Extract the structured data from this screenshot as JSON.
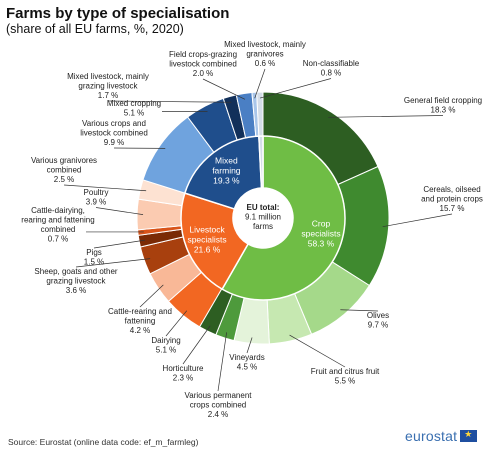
{
  "title": "Farms by type of specialisation",
  "subtitle": "(share of all EU farms, %, 2020)",
  "source": "Source: Eurostat (online data code: ef_m_farmleg)",
  "logo": "eurostat",
  "chart_data": {
    "type": "pie",
    "center": {
      "line1": "EU total:",
      "line2": "9.1 million",
      "line3": "farms"
    },
    "inner": [
      {
        "name": "Crop specialists",
        "value": 58.3,
        "label": [
          "Crop",
          "specialists",
          "58.3 %"
        ],
        "color": "#6fbd45"
      },
      {
        "name": "Livestock specialists",
        "value": 21.6,
        "label": [
          "Livestock",
          "specialists",
          "21.6 %"
        ],
        "color": "#f26722"
      },
      {
        "name": "Mixed farming",
        "value": 19.3,
        "label": [
          "Mixed",
          "farming",
          "19.3 %"
        ],
        "color": "#1f4e8c"
      },
      {
        "name": "Non-classifiable",
        "value": 0.8,
        "label": [],
        "color": "#d4dde8"
      }
    ],
    "outer": [
      {
        "name": "General field cropping",
        "value": 18.3,
        "label": [
          "General field cropping",
          "18.3 %"
        ],
        "color": "#2d5e22"
      },
      {
        "name": "Cereals, oilseed and protein crops",
        "value": 15.7,
        "label": [
          "Cereals, oilseed",
          "and protein crops",
          "15.7 %"
        ],
        "color": "#3f8a2f"
      },
      {
        "name": "Olives",
        "value": 9.7,
        "label": [
          "Olives",
          "9.7 %"
        ],
        "color": "#a5d98a"
      },
      {
        "name": "Fruit and citrus fruit",
        "value": 5.5,
        "label": [
          "Fruit and citrus fruit",
          "5.5 %"
        ],
        "color": "#c6e8b1"
      },
      {
        "name": "Vineyards",
        "value": 4.5,
        "label": [
          "Vineyards",
          "4.5 %"
        ],
        "color": "#e4f3da"
      },
      {
        "name": "Various permanent crops combined",
        "value": 2.4,
        "label": [
          "Various permanent",
          "crops combined",
          "2.4 %"
        ],
        "color": "#4e9a3c"
      },
      {
        "name": "Horticulture",
        "value": 2.3,
        "label": [
          "Horticulture",
          "2.3 %"
        ],
        "color": "#2d5e22"
      },
      {
        "name": "Dairying",
        "value": 5.1,
        "label": [
          "Dairying",
          "5.1 %"
        ],
        "color": "#f26722"
      },
      {
        "name": "Cattle-rearing and fattening",
        "value": 4.2,
        "label": [
          "Cattle-rearing and",
          "fattening",
          "4.2 %"
        ],
        "color": "#f9b897"
      },
      {
        "name": "Sheep, goats and other grazing livestock",
        "value": 3.6,
        "label": [
          "Sheep, goats and other",
          "grazing livestock",
          "3.6 %"
        ],
        "color": "#a8400e"
      },
      {
        "name": "Pigs",
        "value": 1.5,
        "label": [
          "Pigs",
          "1.5 %"
        ],
        "color": "#7a2a05"
      },
      {
        "name": "Cattle-dairying, rearing and fattening combined",
        "value": 0.7,
        "label": [
          "Cattle-dairying,",
          "rearing and fattening",
          "combined",
          "0.7 %"
        ],
        "color": "#d8541a"
      },
      {
        "name": "Poultry",
        "value": 3.9,
        "label": [
          "Poultry",
          "3.9 %"
        ],
        "color": "#fbcbb1"
      },
      {
        "name": "Various granivores combined",
        "value": 2.5,
        "label": [
          "Various granivores",
          "combined",
          "2.5 %"
        ],
        "color": "#fde2d2"
      },
      {
        "name": "Various crops and livestock combined",
        "value": 9.9,
        "label": [
          "Various crops and",
          "livestock combined",
          "9.9 %"
        ],
        "color": "#6fa3de"
      },
      {
        "name": "Mixed cropping",
        "value": 5.1,
        "label": [
          "Mixed cropping",
          "5.1 %"
        ],
        "color": "#1f4e8c"
      },
      {
        "name": "Mixed livestock, mainly grazing livestock",
        "value": 1.7,
        "label": [
          "Mixed livestock, mainly",
          "grazing livestock",
          "1.7 %"
        ],
        "color": "#12305a"
      },
      {
        "name": "Field crops-grazing livestock combined",
        "value": 2.0,
        "label": [
          "Field crops-grazing",
          "livestock combined",
          "2.0 %"
        ],
        "color": "#4a7fc4"
      },
      {
        "name": "Mixed livestock, mainly granivores",
        "value": 0.6,
        "label": [
          "Mixed livestock, mainly",
          "granivores",
          "0.6 %"
        ],
        "color": "#a9c6ea"
      },
      {
        "name": "Non-classifiable",
        "value": 0.8,
        "label": [
          "Non-classifiable",
          "0.8 %"
        ],
        "color": "#d4dde8"
      }
    ]
  }
}
